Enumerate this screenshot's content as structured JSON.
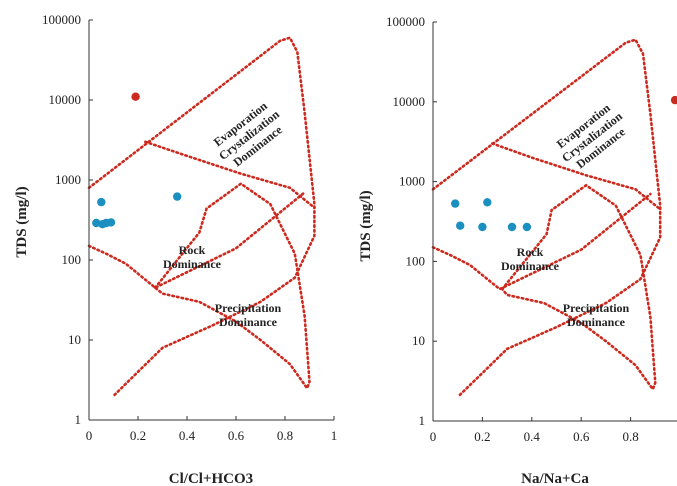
{
  "chart_data": [
    {
      "type": "scatter",
      "title": "",
      "xlabel": "Cl/Cl+HCO3",
      "ylabel": "TDS (mg/l)",
      "xlim": [
        0,
        1
      ],
      "ylim": [
        1,
        100000
      ],
      "yscale": "log",
      "x_ticks": [
        0,
        0.2,
        0.4,
        0.6,
        0.8,
        1
      ],
      "x_tick_labels": [
        "0",
        "0.2",
        "0.4",
        "0.6",
        "0.8",
        "1"
      ],
      "y_ticks": [
        1,
        10,
        100,
        1000,
        10000,
        100000
      ],
      "y_tick_labels": [
        "1",
        "10",
        "100",
        "1000",
        "10000",
        "100000"
      ],
      "grid": false,
      "region_labels": [
        {
          "lines": [
            "Evaporation",
            "Crystalization",
            "Dominance"
          ]
        },
        {
          "lines": [
            "Rock",
            "Dominance"
          ]
        },
        {
          "lines": [
            "Precipitation",
            "Dominance"
          ]
        }
      ],
      "series": [
        {
          "color": "#1a8fc0",
          "points": [
            [
              0.03,
              290
            ],
            [
              0.05,
              530
            ],
            [
              0.055,
              280
            ],
            [
              0.07,
              290
            ],
            [
              0.09,
              295
            ],
            [
              0.36,
              620
            ]
          ]
        },
        {
          "color": "#cc2a1e",
          "points": [
            [
              0.19,
              11000
            ]
          ]
        }
      ],
      "boundary_color": "#cc2a1e"
    },
    {
      "type": "scatter",
      "title": "",
      "xlabel": "Na/Na+Ca",
      "ylabel": "TDS (mg/l)",
      "xlim": [
        0,
        1
      ],
      "ylim": [
        1,
        100000
      ],
      "yscale": "log",
      "x_ticks": [
        0,
        0.2,
        0.4,
        0.6,
        0.8
      ],
      "x_tick_labels": [
        "0",
        "0.2",
        "0.4",
        "0.6",
        "0.8"
      ],
      "y_ticks": [
        1,
        10,
        100,
        1000,
        10000,
        100000
      ],
      "y_tick_labels": [
        "1",
        "10",
        "100",
        "1000",
        "10000",
        "100000"
      ],
      "grid": false,
      "region_labels": [
        {
          "lines": [
            "Evaporation",
            "Crystalization",
            "Dominance"
          ]
        },
        {
          "lines": [
            "Rock",
            "Dominance"
          ]
        },
        {
          "lines": [
            "Precipitation",
            "Dominance"
          ]
        }
      ],
      "series": [
        {
          "color": "#1a8fc0",
          "points": [
            [
              0.09,
              530
            ],
            [
              0.11,
              280
            ],
            [
              0.2,
              270
            ],
            [
              0.22,
              550
            ],
            [
              0.32,
              270
            ],
            [
              0.38,
              270
            ]
          ]
        },
        {
          "color": "#cc2a1e",
          "points": [
            [
              0.98,
              10500
            ]
          ]
        }
      ],
      "boundary_color": "#cc2a1e"
    }
  ]
}
